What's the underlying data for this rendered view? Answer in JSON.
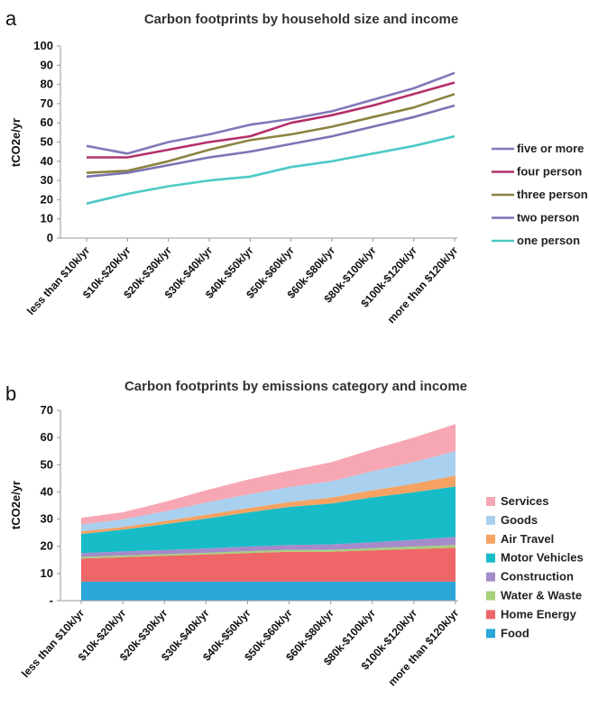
{
  "chart_data": [
    {
      "panel_label": "a",
      "type": "line",
      "title": "Carbon footprints by household size and income",
      "ylabel": "tCO2e/yr",
      "xlabel": "",
      "ylim": [
        0,
        100
      ],
      "yticks": [
        "0",
        "10",
        "20",
        "30",
        "40",
        "50",
        "60",
        "70",
        "80",
        "90",
        "100"
      ],
      "grid": false,
      "legend": "right",
      "categories": [
        "less than $10k/yr",
        "$10k-$20k/yr",
        "$20k-$30k/yr",
        "$30k-$40k/yr",
        "$40k-$50k/yr",
        "$50k-$60k/yr",
        "$60k-$80k/yr",
        "$80k-$100k/yr",
        "$100k-$120k/yr",
        "more than $120k/yr"
      ],
      "series": [
        {
          "name": "five or more",
          "color": "#8079b8",
          "values": [
            48,
            44,
            50,
            54,
            59,
            62,
            66,
            72,
            78,
            86
          ]
        },
        {
          "name": "four person",
          "color": "#b3306a",
          "values": [
            42,
            42,
            46,
            50,
            53,
            60,
            64,
            69,
            75,
            81
          ]
        },
        {
          "name": "three person",
          "color": "#8c8240",
          "values": [
            34,
            35,
            40,
            46,
            51,
            54,
            58,
            63,
            68,
            75
          ]
        },
        {
          "name": "two person",
          "color": "#7a74b2",
          "values": [
            32,
            34,
            38,
            42,
            45,
            49,
            53,
            58,
            63,
            69
          ]
        },
        {
          "name": "one person",
          "color": "#4dc9c6",
          "values": [
            18,
            23,
            27,
            30,
            32,
            37,
            40,
            44,
            48,
            53
          ]
        }
      ]
    },
    {
      "panel_label": "b",
      "type": "area",
      "stacked": true,
      "title": "Carbon footprints by emissions category and income",
      "ylabel": "tCO2e/yr",
      "xlabel": "",
      "ylim": [
        0,
        70
      ],
      "yticks": [
        "-",
        "10",
        "20",
        "30",
        "40",
        "50",
        "60",
        "70"
      ],
      "grid": false,
      "legend": "right",
      "categories": [
        "less than $10k/yr",
        "$10k-$20k/yr",
        "$20k-$30k/yr",
        "$30k-$40k/yr",
        "$40k-$50k/yr",
        "$50k-$60k/yr",
        "$60k-$80k/yr",
        "$80k-$100k/yr",
        "$100k-$120k/yr",
        "more than $120k/yr"
      ],
      "series": [
        {
          "name": "Food",
          "color": "#2aa6d8",
          "values": [
            7,
            7,
            7,
            7,
            7,
            7,
            7,
            7,
            7,
            7
          ]
        },
        {
          "name": "Home Energy",
          "color": "#ee6667",
          "values": [
            8.5,
            9,
            9.5,
            10,
            10.5,
            11,
            11,
            11.5,
            12,
            12.5
          ]
        },
        {
          "name": "Water & Waste",
          "color": "#a6cf7a",
          "values": [
            0.6,
            0.6,
            0.6,
            0.6,
            0.7,
            0.7,
            0.7,
            0.8,
            0.9,
            1.0
          ]
        },
        {
          "name": "Construction",
          "color": "#a58bc9",
          "values": [
            1.4,
            1.5,
            1.5,
            1.6,
            1.7,
            1.8,
            2.0,
            2.2,
            2.5,
            3.0
          ]
        },
        {
          "name": "Motor Vehicles",
          "color": "#18bcc8",
          "values": [
            7,
            8,
            9.5,
            11,
            12.5,
            14,
            15,
            16.5,
            17.5,
            18.5
          ]
        },
        {
          "name": "Air Travel",
          "color": "#f5a262",
          "values": [
            1.0,
            1.0,
            1.2,
            1.4,
            1.6,
            1.8,
            2.2,
            2.6,
            3.1,
            4.0
          ]
        },
        {
          "name": "Goods",
          "color": "#a9d0ee",
          "values": [
            2.5,
            2.8,
            3.5,
            4.5,
            5.0,
            5.5,
            6.0,
            7.0,
            8.0,
            9.0
          ]
        },
        {
          "name": "Services",
          "color": "#f6a7b3",
          "values": [
            2.5,
            2.6,
            3.5,
            4.5,
            5.5,
            6.0,
            7.0,
            8.0,
            9.0,
            10.0
          ]
        }
      ]
    }
  ]
}
